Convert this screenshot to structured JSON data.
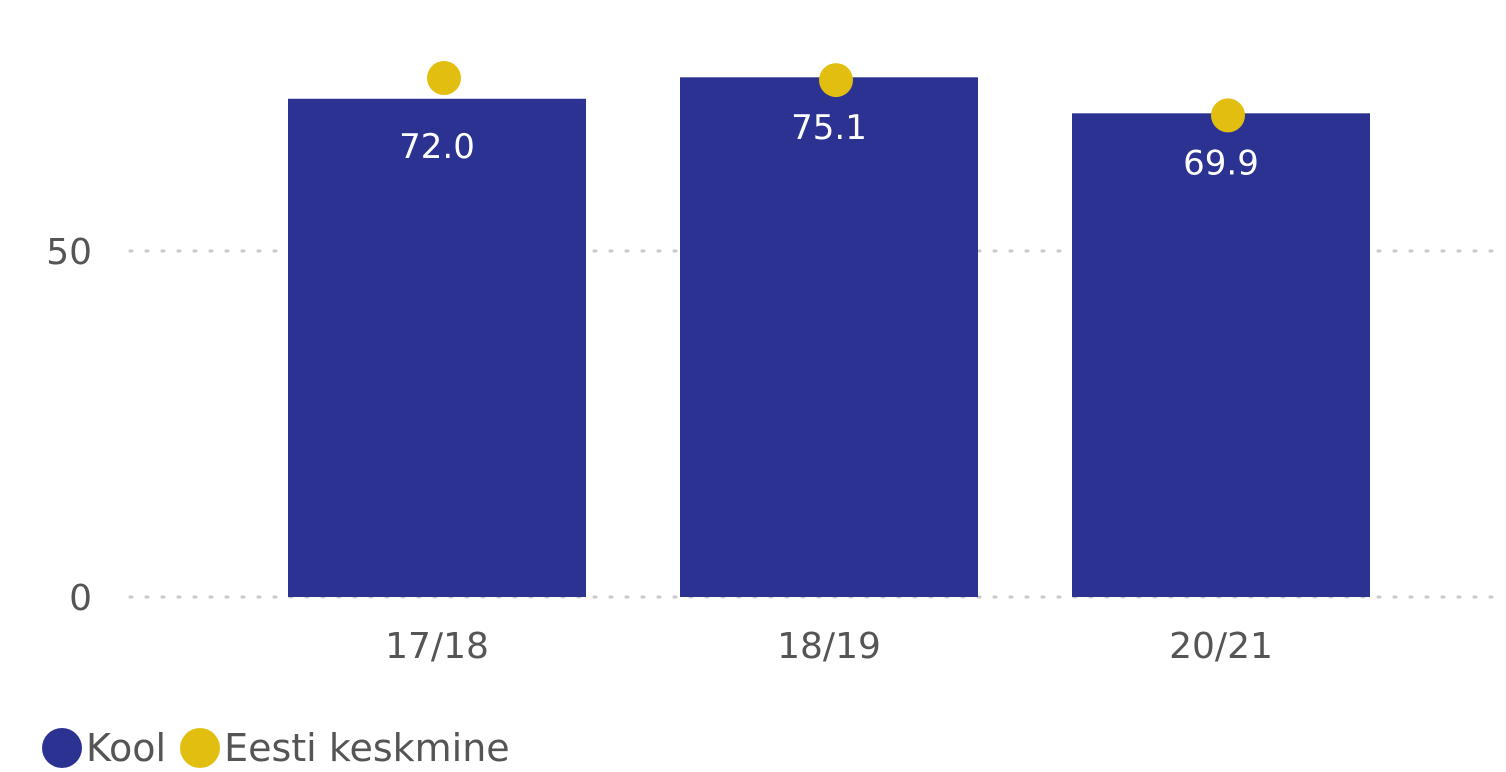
{
  "chart_data": {
    "type": "bar",
    "categories": [
      "17/18",
      "18/19",
      "20/21"
    ],
    "series": [
      {
        "name": "Kool",
        "type": "bar",
        "color": "#2B3292",
        "values": [
          72.0,
          75.1,
          69.9
        ],
        "labels": [
          "72.0",
          "75.1",
          "69.9"
        ]
      },
      {
        "name": "Eesti keskmine",
        "type": "marker",
        "color": "#E2BE10",
        "values": [
          75.0,
          74.7,
          69.6
        ]
      }
    ],
    "yticks": [
      0,
      50
    ],
    "ytick_labels": [
      "0",
      "50"
    ],
    "ylim": [
      0,
      86
    ],
    "grid": true,
    "legend": "bottom-left"
  }
}
